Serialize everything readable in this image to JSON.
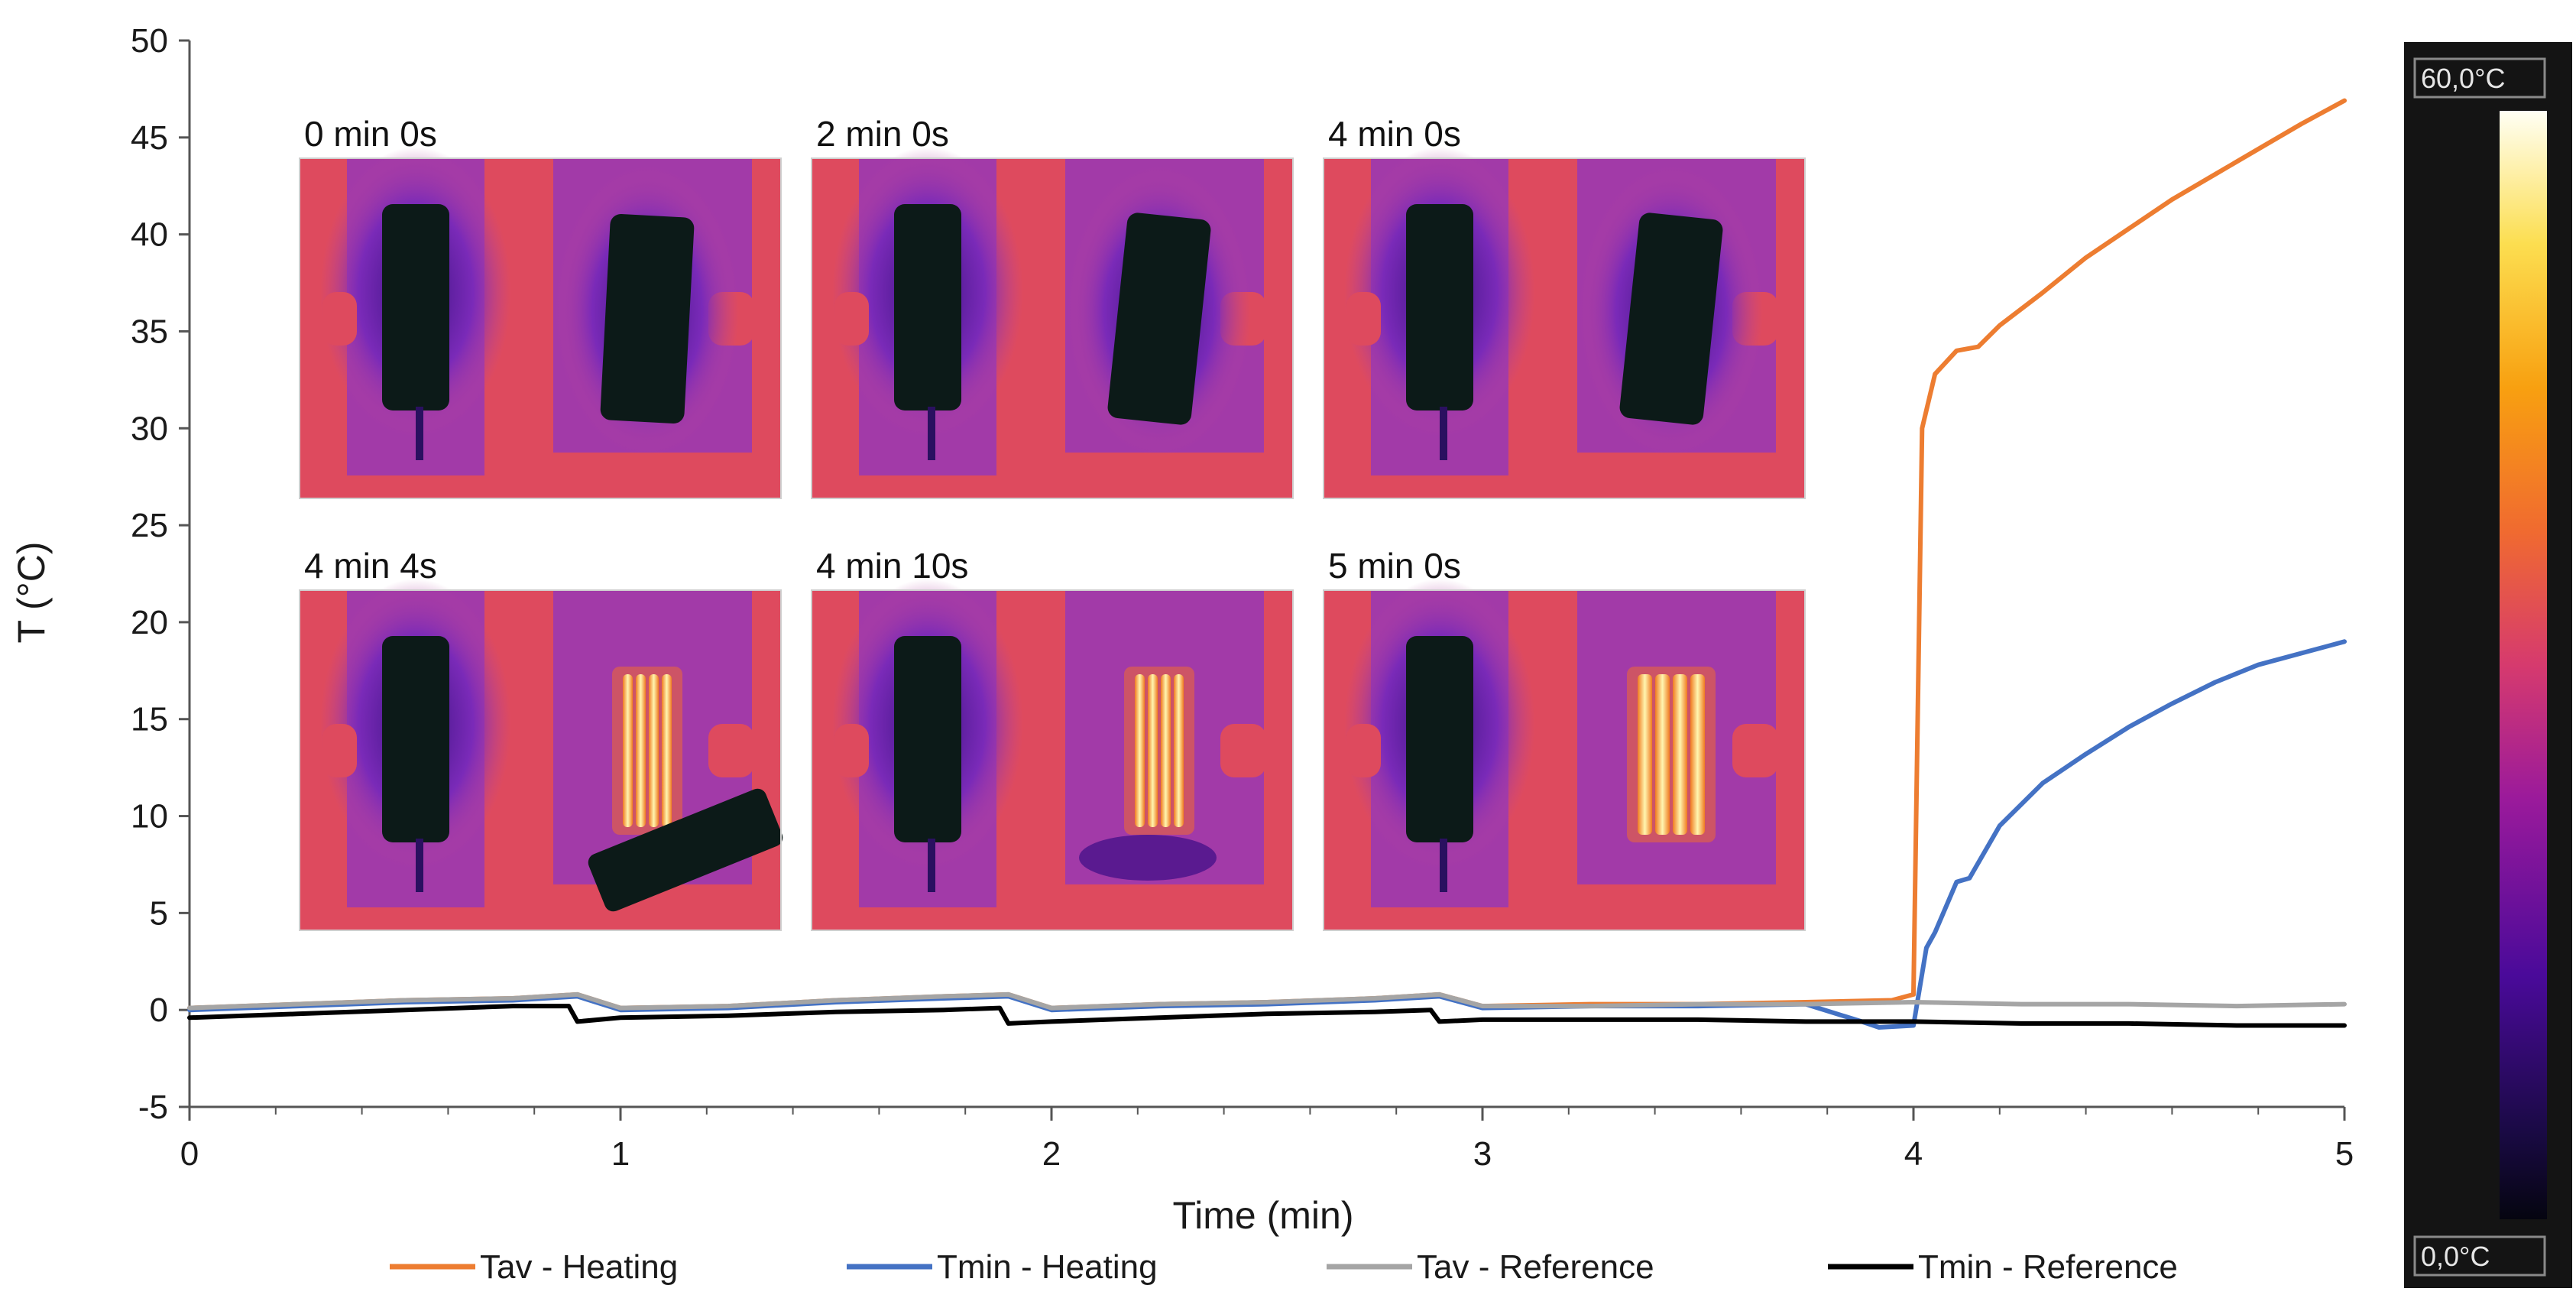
{
  "chart_data": {
    "type": "line",
    "title": "",
    "xlabel": "Time (min)",
    "ylabel": "T (°C)",
    "xlim": [
      0,
      5
    ],
    "ylim": [
      -5,
      50
    ],
    "xticks": [
      "0",
      "1",
      "2",
      "3",
      "4",
      "5"
    ],
    "yticks": [
      "50",
      "45",
      "40",
      "35",
      "30",
      "25",
      "20",
      "15",
      "10",
      "5",
      "0",
      "-5"
    ],
    "grid": false,
    "legend_position": "bottom",
    "series": [
      {
        "name": "Tav - Heating",
        "color": "#ed7d31",
        "x": [
          0,
          0.25,
          0.5,
          0.75,
          0.9,
          1.0,
          1.25,
          1.5,
          1.75,
          1.9,
          2.0,
          2.25,
          2.5,
          2.75,
          2.9,
          3.0,
          3.25,
          3.5,
          3.75,
          3.95,
          4.0,
          4.02,
          4.05,
          4.1,
          4.15,
          4.2,
          4.3,
          4.4,
          4.5,
          4.6,
          4.7,
          4.8,
          4.9,
          5.0
        ],
        "y": [
          0.1,
          0.3,
          0.5,
          0.6,
          0.8,
          0.1,
          0.2,
          0.5,
          0.7,
          0.8,
          0.1,
          0.3,
          0.4,
          0.6,
          0.8,
          0.2,
          0.3,
          0.3,
          0.4,
          0.5,
          0.8,
          30.0,
          32.8,
          34.0,
          34.2,
          35.3,
          37.0,
          38.8,
          40.3,
          41.8,
          43.1,
          44.4,
          45.7,
          46.9
        ]
      },
      {
        "name": "Tmin - Heating",
        "color": "#4472c4",
        "x": [
          0,
          0.25,
          0.5,
          0.75,
          0.9,
          1.0,
          1.25,
          1.5,
          1.75,
          1.9,
          2.0,
          2.25,
          2.5,
          2.75,
          2.9,
          3.0,
          3.25,
          3.5,
          3.75,
          3.88,
          3.92,
          4.0,
          4.03,
          4.05,
          4.1,
          4.13,
          4.2,
          4.3,
          4.4,
          4.5,
          4.6,
          4.7,
          4.8,
          4.9,
          5.0
        ],
        "y": [
          0.0,
          0.2,
          0.4,
          0.5,
          0.7,
          0.0,
          0.1,
          0.4,
          0.6,
          0.7,
          0.0,
          0.2,
          0.3,
          0.5,
          0.7,
          0.1,
          0.2,
          0.2,
          0.3,
          -0.6,
          -0.9,
          -0.8,
          3.2,
          4.0,
          6.6,
          6.8,
          9.5,
          11.7,
          13.2,
          14.6,
          15.8,
          16.9,
          17.8,
          18.4,
          19.0
        ]
      },
      {
        "name": "Tav - Reference",
        "color": "#a5a5a5",
        "x": [
          0,
          0.25,
          0.5,
          0.75,
          0.9,
          1.0,
          1.25,
          1.5,
          1.75,
          1.9,
          2.0,
          2.25,
          2.5,
          2.75,
          2.9,
          3.0,
          3.25,
          3.5,
          3.75,
          4.0,
          4.25,
          4.5,
          4.75,
          5.0
        ],
        "y": [
          0.1,
          0.3,
          0.5,
          0.6,
          0.8,
          0.1,
          0.2,
          0.5,
          0.7,
          0.8,
          0.1,
          0.3,
          0.4,
          0.6,
          0.8,
          0.2,
          0.2,
          0.3,
          0.3,
          0.4,
          0.3,
          0.3,
          0.2,
          0.3
        ]
      },
      {
        "name": "Tmin - Reference",
        "color": "#000000",
        "x": [
          0,
          0.25,
          0.5,
          0.75,
          0.88,
          0.9,
          1.0,
          1.25,
          1.5,
          1.75,
          1.88,
          1.9,
          2.0,
          2.25,
          2.5,
          2.75,
          2.88,
          2.9,
          3.0,
          3.25,
          3.5,
          3.75,
          4.0,
          4.25,
          4.5,
          4.75,
          5.0
        ],
        "y": [
          -0.4,
          -0.2,
          0.0,
          0.2,
          0.2,
          -0.6,
          -0.4,
          -0.3,
          -0.1,
          0.0,
          0.1,
          -0.7,
          -0.6,
          -0.4,
          -0.2,
          -0.1,
          0.0,
          -0.6,
          -0.5,
          -0.5,
          -0.5,
          -0.6,
          -0.6,
          -0.7,
          -0.7,
          -0.8,
          -0.8
        ]
      }
    ],
    "insets": [
      {
        "label": "0 min 0s"
      },
      {
        "label": "2 min 0s"
      },
      {
        "label": "4 min 0s"
      },
      {
        "label": "4 min 4s"
      },
      {
        "label": "4 min 10s"
      },
      {
        "label": "5 min 0s"
      }
    ],
    "colorbar": {
      "max_label": "60,0°C",
      "min_label": "0,0°C"
    }
  }
}
